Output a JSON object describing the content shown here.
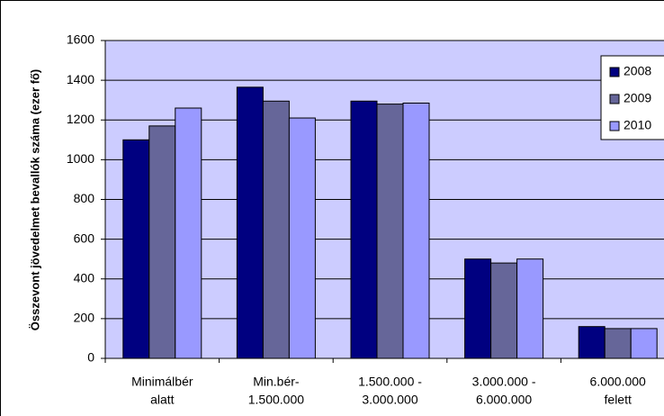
{
  "chart_data": {
    "type": "bar",
    "y_label": "Összevont jövedelmet bevallók száma (ezer fő)",
    "categories": [
      [
        "Minimálbér",
        "alatt"
      ],
      [
        "Min.bér-",
        "1.500.000"
      ],
      [
        "1.500.000 -",
        "3.000.000"
      ],
      [
        "3.000.000 -",
        "6.000.000"
      ],
      [
        "6.000.000",
        "felett"
      ]
    ],
    "series": [
      {
        "name": "2008",
        "color": "#000080",
        "values": [
          1100,
          1365,
          1295,
          500,
          160
        ]
      },
      {
        "name": "2009",
        "color": "#666699",
        "values": [
          1170,
          1295,
          1280,
          480,
          150
        ]
      },
      {
        "name": "2010",
        "color": "#9999ff",
        "values": [
          1260,
          1210,
          1285,
          500,
          150
        ]
      }
    ],
    "ylim": [
      0,
      1600
    ],
    "yticks": [
      0,
      200,
      400,
      600,
      800,
      1000,
      1200,
      1400,
      1600
    ],
    "grid": true,
    "legend": "right",
    "plot_bg": "#ccccff"
  }
}
